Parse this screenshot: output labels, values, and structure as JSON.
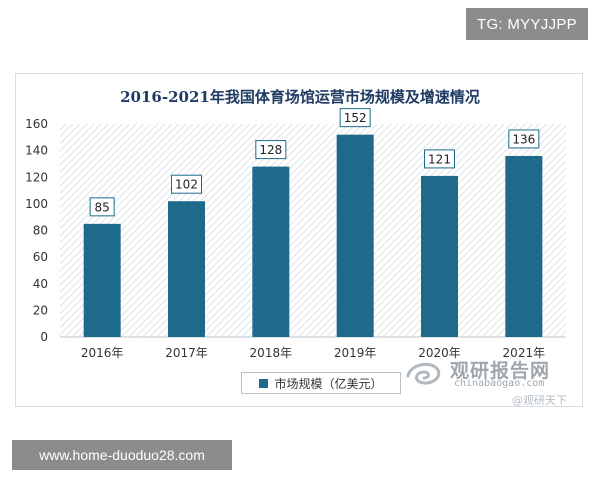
{
  "badges": {
    "top_right": "TG: MYYJJPP",
    "bottom_left": "www.home-duoduo28.com"
  },
  "watermark": {
    "site_cn": "观研报告网",
    "site_url": "chinabaogao.com",
    "weibo": "@观研天下"
  },
  "colors": {
    "bar": "#1d6a8a",
    "title": "#1f3b63",
    "hatch": "#dfe3e6"
  },
  "chart_data": {
    "type": "bar",
    "title": "2016-2021年我国体育场馆运营市场规模及增速情况",
    "categories": [
      "2016年",
      "2017年",
      "2018年",
      "2019年",
      "2020年",
      "2021年"
    ],
    "series": [
      {
        "name": "市场规模（亿美元）",
        "values": [
          85,
          102,
          128,
          152,
          121,
          136
        ]
      }
    ],
    "data_labels": [
      "85",
      "102",
      "128",
      "152",
      "121",
      "136"
    ],
    "ylim": [
      0,
      160
    ],
    "yticks": [
      0,
      20,
      40,
      60,
      80,
      100,
      120,
      140,
      160
    ],
    "grid": false,
    "background": "diagonal-hatch",
    "legend_position": "bottom"
  }
}
